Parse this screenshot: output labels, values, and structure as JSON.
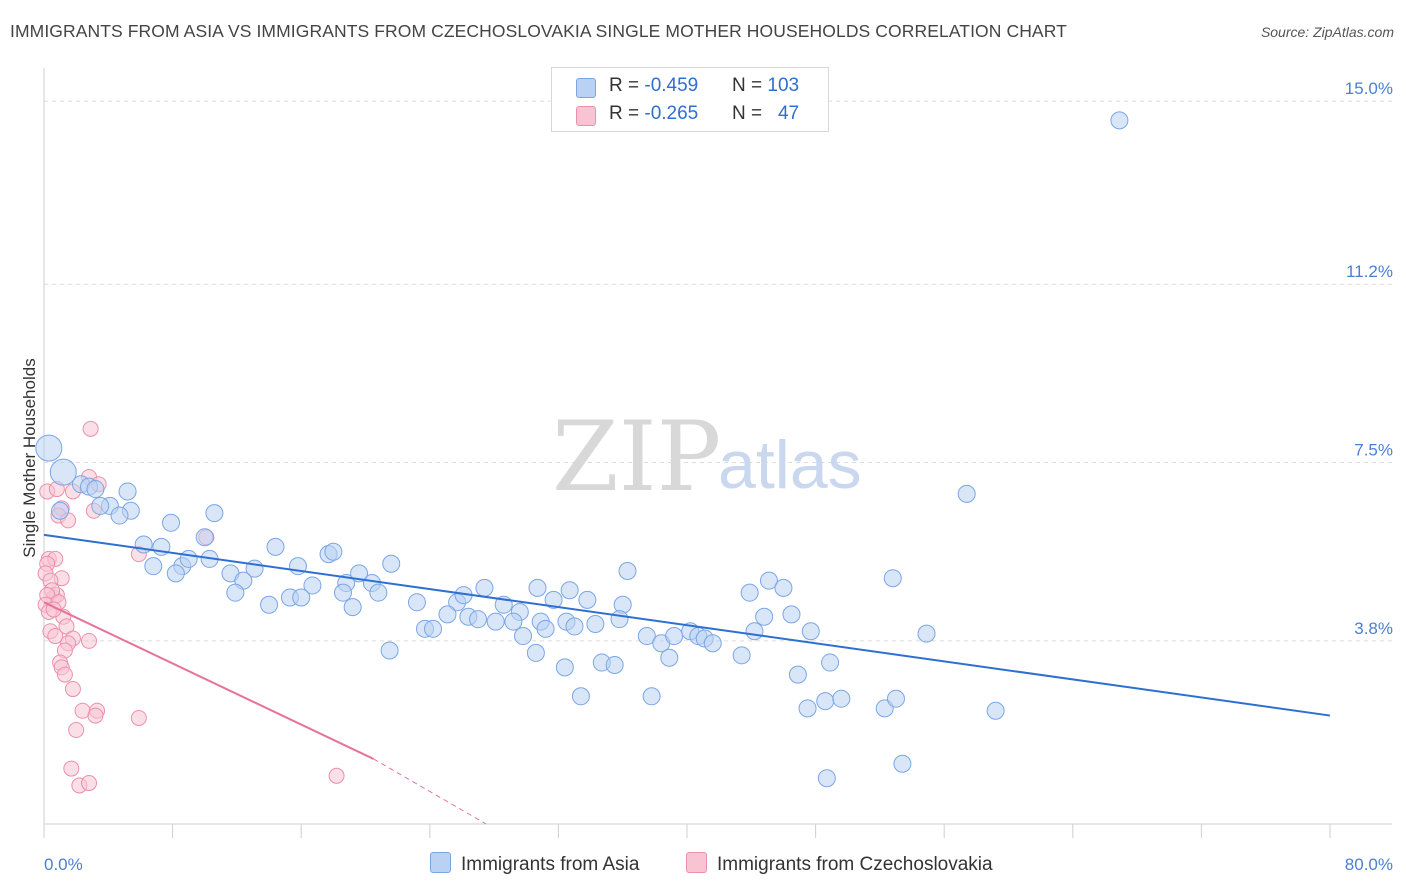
{
  "title": "IMMIGRANTS FROM ASIA VS IMMIGRANTS FROM CZECHOSLOVAKIA SINGLE MOTHER HOUSEHOLDS CORRELATION CHART",
  "source": "Source: ZipAtlas.com",
  "watermark": {
    "zip": "ZIP",
    "atlas": "atlas"
  },
  "legend": {
    "rows": [
      {
        "r_label": "R = ",
        "r_value": "-0.459",
        "n_label": "N = ",
        "n_value": "103",
        "color_fill": "#b9d2f3",
        "color_stroke": "#7aa6e6"
      },
      {
        "r_label": "R = ",
        "r_value": "-0.265",
        "n_label": "N = ",
        "n_value": "47",
        "color_fill": "#f8c4d3",
        "color_stroke": "#ee8fab"
      }
    ]
  },
  "bottom_legend": [
    {
      "label": "Immigrants from Asia",
      "color_fill": "#b9d2f3",
      "color_stroke": "#7aa6e6"
    },
    {
      "label": "Immigrants from Czechoslovakia",
      "color_fill": "#f8c4d3",
      "color_stroke": "#ee8fab"
    }
  ],
  "chart_data": {
    "type": "scatter",
    "title": "IMMIGRANTS FROM ASIA VS IMMIGRANTS FROM CZECHOSLOVAKIA SINGLE MOTHER HOUSEHOLDS CORRELATION CHART",
    "xlabel": "",
    "ylabel": "Single Mother Households",
    "xlim": [
      0,
      80
    ],
    "ylim": [
      0,
      15.5
    ],
    "x_tick_labels": [
      "0.0%",
      "80.0%"
    ],
    "y_ticks": [
      3.8,
      7.5,
      11.2,
      15.0
    ],
    "y_tick_labels": [
      "3.8%",
      "7.5%",
      "11.2%",
      "15.0%"
    ],
    "grid": "horizontal dashed",
    "legend_position": "top-center",
    "colors": {
      "asia": "#2e6fd2",
      "czech": "#e8739a",
      "asia_fill": "#b9d2f3",
      "czech_fill": "#f8c4d3"
    },
    "series": [
      {
        "name": "Immigrants from Asia",
        "r": -0.459,
        "n": 103,
        "trend": {
          "x": [
            0,
            80
          ],
          "y": [
            6.0,
            2.25
          ]
        },
        "points": [
          [
            0.3,
            7.8
          ],
          [
            1.2,
            7.3
          ],
          [
            2.3,
            7.05
          ],
          [
            2.8,
            7.0
          ],
          [
            5.2,
            6.9
          ],
          [
            4.1,
            6.6
          ],
          [
            5.4,
            6.5
          ],
          [
            3.5,
            6.6
          ],
          [
            4.7,
            6.4
          ],
          [
            10.6,
            6.45
          ],
          [
            7.9,
            6.25
          ],
          [
            10.0,
            5.95
          ],
          [
            6.2,
            5.8
          ],
          [
            7.3,
            5.75
          ],
          [
            14.4,
            5.75
          ],
          [
            17.7,
            5.6
          ],
          [
            21.6,
            5.4
          ],
          [
            6.8,
            5.35
          ],
          [
            8.6,
            5.35
          ],
          [
            9.0,
            5.5
          ],
          [
            10.3,
            5.5
          ],
          [
            11.6,
            5.2
          ],
          [
            13.1,
            5.3
          ],
          [
            15.8,
            5.35
          ],
          [
            18.0,
            5.65
          ],
          [
            12.4,
            5.05
          ],
          [
            16.7,
            4.95
          ],
          [
            18.8,
            5.0
          ],
          [
            20.4,
            5.0
          ],
          [
            11.9,
            4.8
          ],
          [
            14.0,
            4.55
          ],
          [
            15.3,
            4.7
          ],
          [
            16.0,
            4.7
          ],
          [
            18.6,
            4.8
          ],
          [
            19.2,
            4.5
          ],
          [
            20.8,
            4.8
          ],
          [
            23.2,
            4.6
          ],
          [
            25.7,
            4.6
          ],
          [
            26.1,
            4.75
          ],
          [
            27.4,
            4.9
          ],
          [
            28.6,
            4.55
          ],
          [
            29.6,
            4.4
          ],
          [
            30.7,
            4.9
          ],
          [
            31.7,
            4.65
          ],
          [
            32.7,
            4.85
          ],
          [
            33.8,
            4.65
          ],
          [
            36.3,
            5.25
          ],
          [
            36.0,
            4.55
          ],
          [
            23.7,
            4.05
          ],
          [
            24.2,
            4.05
          ],
          [
            26.4,
            4.3
          ],
          [
            27.0,
            4.25
          ],
          [
            28.1,
            4.2
          ],
          [
            29.2,
            4.2
          ],
          [
            29.8,
            3.9
          ],
          [
            30.9,
            4.2
          ],
          [
            32.5,
            4.2
          ],
          [
            33.0,
            4.1
          ],
          [
            34.3,
            4.15
          ],
          [
            35.8,
            4.25
          ],
          [
            37.5,
            3.9
          ],
          [
            38.4,
            3.75
          ],
          [
            39.2,
            3.9
          ],
          [
            40.2,
            4.0
          ],
          [
            40.7,
            3.9
          ],
          [
            41.1,
            3.85
          ],
          [
            41.6,
            3.75
          ],
          [
            43.4,
            3.5
          ],
          [
            43.9,
            4.8
          ],
          [
            44.8,
            4.3
          ],
          [
            46.5,
            4.35
          ],
          [
            45.1,
            5.05
          ],
          [
            46.0,
            4.9
          ],
          [
            47.7,
            4.0
          ],
          [
            21.5,
            3.6
          ],
          [
            30.6,
            3.55
          ],
          [
            32.4,
            3.25
          ],
          [
            33.4,
            2.65
          ],
          [
            34.7,
            3.35
          ],
          [
            35.5,
            3.3
          ],
          [
            37.8,
            2.65
          ],
          [
            38.9,
            3.45
          ],
          [
            46.9,
            3.1
          ],
          [
            47.5,
            2.4
          ],
          [
            48.6,
            2.55
          ],
          [
            49.6,
            2.6
          ],
          [
            48.9,
            3.35
          ],
          [
            52.3,
            2.4
          ],
          [
            52.8,
            5.1
          ],
          [
            53.0,
            2.6
          ],
          [
            54.9,
            3.95
          ],
          [
            57.4,
            6.85
          ],
          [
            59.2,
            2.35
          ],
          [
            66.9,
            14.6
          ],
          [
            53.4,
            1.25
          ],
          [
            48.7,
            0.95
          ],
          [
            3.2,
            6.95
          ],
          [
            1.0,
            6.5
          ],
          [
            8.2,
            5.2
          ],
          [
            25.1,
            4.35
          ],
          [
            31.2,
            4.05
          ],
          [
            19.6,
            5.2
          ],
          [
            44.2,
            4.0
          ]
        ]
      },
      {
        "name": "Immigrants from Czechoslovakia",
        "r": -0.265,
        "n": 47,
        "trend": {
          "x": [
            0,
            20.5
          ],
          "y": [
            4.6,
            1.35
          ]
        },
        "trend_dashed": {
          "x": [
            20.5,
            27.5
          ],
          "y": [
            1.35,
            0.0
          ]
        },
        "points": [
          [
            0.2,
            6.9
          ],
          [
            0.8,
            6.95
          ],
          [
            2.8,
            7.2
          ],
          [
            2.9,
            8.2
          ],
          [
            3.4,
            7.05
          ],
          [
            1.8,
            6.9
          ],
          [
            1.1,
            6.55
          ],
          [
            0.9,
            6.4
          ],
          [
            1.5,
            6.3
          ],
          [
            3.1,
            6.5
          ],
          [
            0.3,
            5.5
          ],
          [
            0.7,
            5.5
          ],
          [
            0.2,
            5.4
          ],
          [
            0.1,
            5.2
          ],
          [
            1.1,
            5.1
          ],
          [
            0.4,
            5.05
          ],
          [
            0.6,
            4.7
          ],
          [
            0.8,
            4.75
          ],
          [
            0.5,
            4.85
          ],
          [
            0.2,
            4.75
          ],
          [
            0.1,
            4.55
          ],
          [
            0.3,
            4.4
          ],
          [
            1.2,
            4.3
          ],
          [
            1.4,
            4.1
          ],
          [
            0.4,
            4.0
          ],
          [
            0.7,
            3.9
          ],
          [
            1.8,
            3.85
          ],
          [
            2.8,
            3.8
          ],
          [
            1.5,
            3.75
          ],
          [
            1.3,
            3.6
          ],
          [
            1.0,
            3.35
          ],
          [
            1.1,
            3.25
          ],
          [
            1.3,
            3.1
          ],
          [
            1.8,
            2.8
          ],
          [
            2.4,
            2.35
          ],
          [
            3.3,
            2.35
          ],
          [
            3.2,
            2.25
          ],
          [
            5.9,
            2.2
          ],
          [
            2.0,
            1.95
          ],
          [
            1.7,
            1.15
          ],
          [
            2.2,
            0.8
          ],
          [
            2.8,
            0.85
          ],
          [
            18.2,
            1.0
          ],
          [
            10.1,
            5.95
          ],
          [
            5.9,
            5.6
          ],
          [
            0.9,
            4.6
          ],
          [
            0.6,
            4.45
          ]
        ]
      }
    ]
  }
}
